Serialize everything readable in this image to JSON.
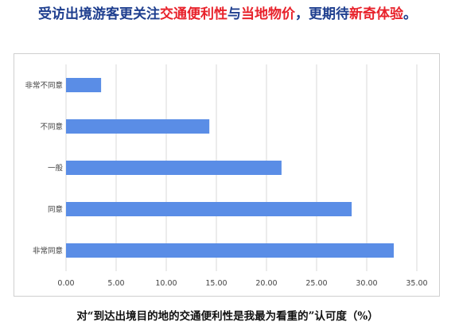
{
  "headline": {
    "part1": "受访出境游客更关注",
    "hl1": "交通便利性",
    "part2": "与",
    "hl2": "当地物价",
    "part3": "，更期待",
    "hl3": "新奇体验",
    "part4": "。"
  },
  "colors": {
    "headline": "#1f3f8f",
    "highlight": "#e8222b",
    "bar": "#5a8de6",
    "grid": "#d9d9d9",
    "text": "#444444"
  },
  "chart_data": {
    "type": "bar",
    "orientation": "horizontal",
    "categories": [
      "非常不同意",
      "不同意",
      "一般",
      "同意",
      "非常同意"
    ],
    "values": [
      3.5,
      14.3,
      21.5,
      28.5,
      32.7
    ],
    "title": "",
    "xlabel": "对“到达出境目的地的交通便利性是我最为看重的”认可度（%）",
    "ylabel": "",
    "xlim": [
      0,
      35
    ],
    "ticks": [
      "0.00",
      "5.00",
      "10.00",
      "15.00",
      "20.00",
      "25.00",
      "30.00",
      "35.00"
    ],
    "grid": "vertical",
    "legend": "none"
  }
}
